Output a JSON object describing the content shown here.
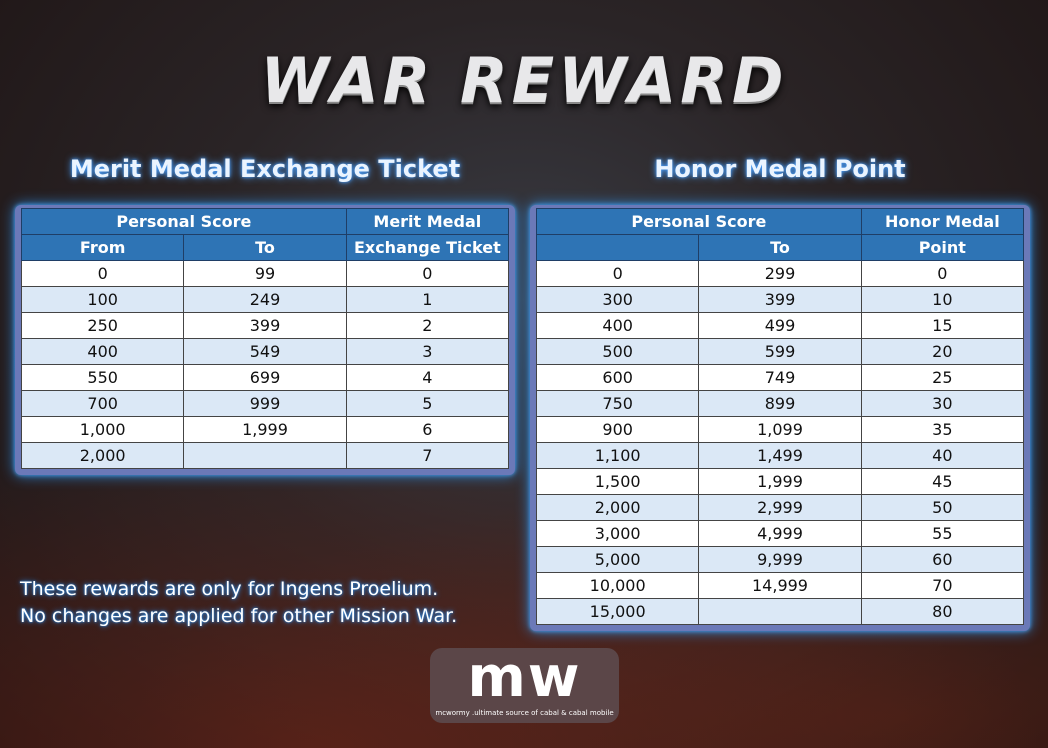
{
  "title": "WAR REWARD",
  "merit": {
    "heading": "Merit Medal Exchange Ticket",
    "group_header": "Personal Score",
    "col_from": "From",
    "col_to": "To",
    "col_reward_1": "Merit Medal",
    "col_reward_2": "Exchange Ticket",
    "rows": [
      [
        "0",
        "99",
        "0"
      ],
      [
        "100",
        "249",
        "1"
      ],
      [
        "250",
        "399",
        "2"
      ],
      [
        "400",
        "549",
        "3"
      ],
      [
        "550",
        "699",
        "4"
      ],
      [
        "700",
        "999",
        "5"
      ],
      [
        "1,000",
        "1,999",
        "6"
      ],
      [
        "2,000",
        "",
        "7"
      ]
    ]
  },
  "honor": {
    "heading": "Honor Medal Point",
    "group_header": "Personal Score",
    "col_from": "",
    "col_to": "To",
    "col_reward_1": "Honor Medal",
    "col_reward_2": "Point",
    "rows": [
      [
        "0",
        "299",
        "0"
      ],
      [
        "300",
        "399",
        "10"
      ],
      [
        "400",
        "499",
        "15"
      ],
      [
        "500",
        "599",
        "20"
      ],
      [
        "600",
        "749",
        "25"
      ],
      [
        "750",
        "899",
        "30"
      ],
      [
        "900",
        "1,099",
        "35"
      ],
      [
        "1,100",
        "1,499",
        "40"
      ],
      [
        "1,500",
        "1,999",
        "45"
      ],
      [
        "2,000",
        "2,999",
        "50"
      ],
      [
        "3,000",
        "4,999",
        "55"
      ],
      [
        "5,000",
        "9,999",
        "60"
      ],
      [
        "10,000",
        "14,999",
        "70"
      ],
      [
        "15,000",
        "",
        "80"
      ]
    ]
  },
  "note": {
    "line1": "These rewards are only for Ingens Proelium.",
    "line2": "No changes are applied for other Mission War."
  },
  "logo": {
    "mark": "mw",
    "tagline": "mcwormy .ultimate source of cabal & cabal mobile"
  }
}
